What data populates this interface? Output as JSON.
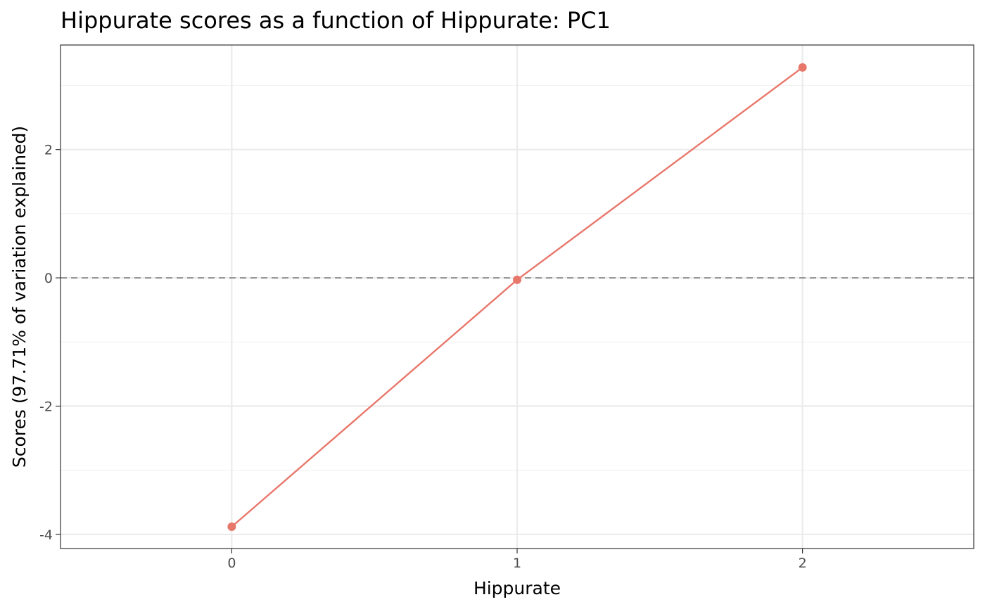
{
  "chart_data": {
    "type": "line",
    "title": "Hippurate scores as a function of Hippurate: PC1",
    "xlabel": "Hippurate",
    "ylabel": "Scores (97.71% of variation explained)",
    "x": [
      0,
      1,
      2
    ],
    "series": [
      {
        "values": [
          -3.88,
          -0.03,
          3.28
        ],
        "color": "#E8776B"
      }
    ],
    "xlim": [
      -0.6,
      2.6
    ],
    "ylim": [
      -4.22,
      3.63
    ],
    "x_ticks": [
      0,
      1,
      2
    ],
    "x_tick_labels": [
      "0",
      "1",
      "2"
    ],
    "y_ticks": [
      -4,
      -2,
      0,
      2
    ],
    "y_tick_labels": [
      "-4",
      "-2",
      "0",
      "2"
    ],
    "reference_line": {
      "y": 0,
      "style": "dashed",
      "color": "#999999"
    },
    "grid": true,
    "legend": "none"
  }
}
